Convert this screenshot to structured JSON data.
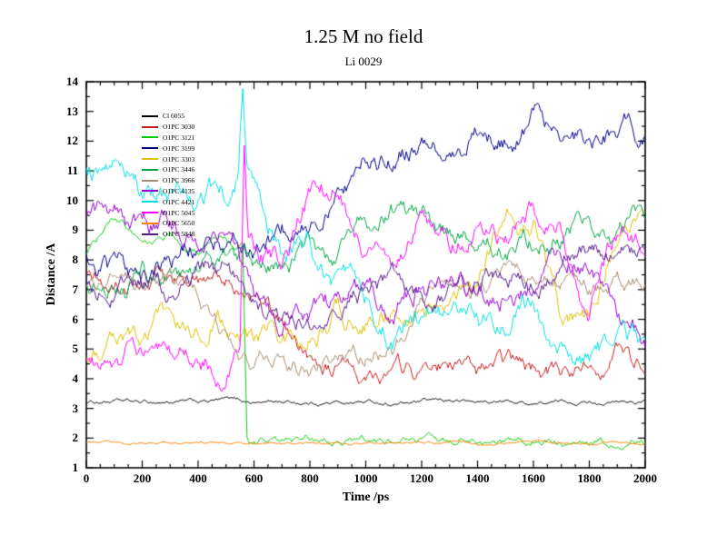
{
  "page": {
    "background": "#ffffff",
    "frame_color": "#000000"
  },
  "chart_data": {
    "type": "line",
    "title": "1.25 M no field",
    "subtitle": "Li 0029",
    "xlabel": "Time /ps",
    "ylabel": "Distance /A",
    "xlim": [
      0,
      2000
    ],
    "ylim": [
      1,
      14
    ],
    "xticks": [
      0,
      200,
      400,
      600,
      800,
      1000,
      1200,
      1400,
      1600,
      1800,
      2000
    ],
    "yticks": [
      1,
      2,
      3,
      4,
      5,
      6,
      7,
      8,
      9,
      10,
      11,
      12,
      13,
      14
    ],
    "x_minor_step": 50,
    "y_minor_step": 0.5,
    "grid": false,
    "legend_position": "upper-left-inside",
    "frame_color": "#000000",
    "series": [
      {
        "name": "Cl 6055",
        "color": "#000000",
        "noise": 0.05,
        "x": [
          0,
          100,
          200,
          300,
          400,
          500,
          600,
          700,
          800,
          900,
          1000,
          1100,
          1200,
          1300,
          1400,
          1500,
          1600,
          1700,
          1800,
          1900,
          2000
        ],
        "y": [
          3.2,
          3.25,
          3.18,
          3.22,
          3.2,
          3.28,
          3.2,
          3.24,
          3.18,
          3.2,
          3.22,
          3.16,
          3.2,
          3.26,
          3.2,
          3.22,
          3.18,
          3.2,
          3.24,
          3.2,
          3.22
        ]
      },
      {
        "name": "O1PC 3030",
        "color": "#c22020",
        "noise": 0.22,
        "x": [
          0,
          100,
          200,
          300,
          400,
          500,
          600,
          700,
          800,
          900,
          1000,
          1100,
          1200,
          1300,
          1400,
          1500,
          1600,
          1700,
          1800,
          1900,
          2000
        ],
        "y": [
          7.3,
          7.0,
          7.2,
          7.5,
          7.1,
          7.3,
          6.6,
          5.9,
          4.8,
          4.3,
          4.2,
          4.4,
          4.2,
          4.5,
          4.0,
          4.3,
          4.2,
          4.0,
          4.5,
          5.0,
          4.4
        ]
      },
      {
        "name": "O1PC 3121",
        "color": "#00cd00",
        "noise": 0.1,
        "x": [
          0,
          100,
          200,
          300,
          400,
          500,
          560,
          575,
          585,
          600,
          800,
          1000,
          1200,
          1400,
          1600,
          1800,
          2000
        ],
        "y": [
          8.2,
          9.3,
          8.6,
          8.9,
          8.3,
          8.6,
          8.5,
          2.0,
          1.92,
          1.9,
          1.9,
          1.92,
          1.9,
          1.9,
          1.92,
          1.9,
          1.9
        ]
      },
      {
        "name": "O1PC 3199",
        "color": "#00008b",
        "noise": 0.28,
        "x": [
          0,
          100,
          200,
          300,
          400,
          500,
          600,
          700,
          800,
          900,
          1000,
          1100,
          1200,
          1300,
          1400,
          1500,
          1600,
          1700,
          1800,
          1900,
          2000
        ],
        "y": [
          8.4,
          7.6,
          7.2,
          7.9,
          8.6,
          8.8,
          8.1,
          8.9,
          9.3,
          9.8,
          11.2,
          11.5,
          12.1,
          11.4,
          12.4,
          12.1,
          12.6,
          12.3,
          11.9,
          12.6,
          12.3
        ]
      },
      {
        "name": "O1PC 3303",
        "color": "#ddc000",
        "noise": 0.28,
        "x": [
          0,
          100,
          200,
          300,
          400,
          500,
          600,
          700,
          800,
          900,
          1000,
          1100,
          1200,
          1300,
          1400,
          1500,
          1600,
          1700,
          1800,
          1900,
          2000
        ],
        "y": [
          4.9,
          5.9,
          5.6,
          6.1,
          5.7,
          6.0,
          5.6,
          5.2,
          5.4,
          6.3,
          6.1,
          6.4,
          6.2,
          7.2,
          7.0,
          9.9,
          9.6,
          5.9,
          6.2,
          9.0,
          9.4
        ]
      },
      {
        "name": "O1PC 3446",
        "color": "#00a544",
        "noise": 0.26,
        "x": [
          0,
          100,
          200,
          300,
          400,
          500,
          600,
          700,
          800,
          900,
          1000,
          1100,
          1200,
          1300,
          1400,
          1500,
          1600,
          1700,
          1800,
          1900,
          2000
        ],
        "y": [
          7.4,
          7.1,
          7.6,
          7.3,
          7.8,
          8.0,
          7.7,
          7.9,
          8.2,
          8.0,
          9.0,
          9.6,
          9.3,
          8.7,
          8.9,
          8.6,
          8.5,
          8.8,
          9.3,
          8.5,
          9.6
        ]
      },
      {
        "name": "O1PC 3966",
        "color": "#a78b71",
        "noise": 0.22,
        "x": [
          0,
          100,
          200,
          300,
          400,
          500,
          600,
          700,
          800,
          900,
          1000,
          1100,
          1200,
          1300,
          1400,
          1500,
          1600,
          1700,
          1800,
          1900,
          2000
        ],
        "y": [
          7.1,
          7.3,
          6.9,
          7.2,
          6.8,
          5.2,
          4.6,
          4.9,
          4.4,
          4.6,
          4.8,
          5.0,
          7.0,
          7.4,
          7.2,
          7.6,
          7.3,
          7.5,
          7.2,
          7.4,
          7.3
        ]
      },
      {
        "name": "O1PC 4135",
        "color": "#9400d3",
        "noise": 0.28,
        "x": [
          0,
          100,
          200,
          300,
          400,
          500,
          600,
          700,
          800,
          900,
          1000,
          1100,
          1200,
          1300,
          1400,
          1500,
          1600,
          1700,
          1800,
          1900,
          2000
        ],
        "y": [
          9.6,
          9.4,
          9.0,
          9.2,
          8.8,
          9.0,
          6.4,
          6.0,
          6.3,
          6.6,
          7.0,
          6.6,
          7.4,
          7.0,
          6.7,
          7.2,
          7.0,
          7.6,
          7.9,
          6.0,
          5.4
        ]
      },
      {
        "name": "O1PC 4421",
        "color": "#00e0e0",
        "noise": 0.3,
        "x": [
          0,
          100,
          200,
          300,
          400,
          500,
          545,
          560,
          575,
          600,
          700,
          800,
          900,
          1000,
          1100,
          1200,
          1300,
          1400,
          1500,
          1600,
          1700,
          1800,
          1900,
          2000
        ],
        "y": [
          10.9,
          11.6,
          10.4,
          10.0,
          10.6,
          10.2,
          11.0,
          14.0,
          11.2,
          10.5,
          8.2,
          8.6,
          7.1,
          6.4,
          5.6,
          6.1,
          5.8,
          6.3,
          5.9,
          6.6,
          5.1,
          4.7,
          5.3,
          4.9
        ]
      },
      {
        "name": "O1PC 5045",
        "color": "#ff00ff",
        "noise": 0.28,
        "x": [
          0,
          100,
          200,
          300,
          400,
          500,
          550,
          565,
          580,
          600,
          700,
          800,
          900,
          1000,
          1100,
          1200,
          1300,
          1400,
          1500,
          1600,
          1700,
          1800,
          1900,
          2000
        ],
        "y": [
          4.7,
          4.5,
          4.8,
          4.4,
          4.6,
          4.5,
          4.8,
          11.7,
          8.5,
          8.3,
          8.0,
          10.4,
          10.6,
          8.2,
          7.8,
          9.6,
          8.8,
          9.3,
          8.6,
          9.8,
          9.0,
          6.1,
          8.8,
          8.4
        ]
      },
      {
        "name": "O1PC 5650",
        "color": "#ff8000",
        "noise": 0.03,
        "x": [
          0,
          100,
          200,
          300,
          400,
          500,
          600,
          700,
          800,
          900,
          1000,
          1100,
          1200,
          1300,
          1400,
          1500,
          1600,
          1700,
          1800,
          1900,
          2000
        ],
        "y": [
          1.83,
          1.83,
          1.83,
          1.83,
          1.83,
          1.83,
          1.83,
          1.83,
          1.83,
          1.83,
          1.83,
          1.83,
          1.83,
          1.83,
          1.83,
          1.83,
          1.83,
          1.83,
          1.83,
          1.83,
          1.83
        ]
      },
      {
        "name": "O1PC 5848",
        "color": "#551a8b",
        "noise": 0.25,
        "x": [
          0,
          100,
          200,
          300,
          400,
          500,
          600,
          700,
          800,
          900,
          1000,
          1100,
          1200,
          1300,
          1400,
          1500,
          1600,
          1700,
          1800,
          1900,
          2000
        ],
        "y": [
          7.2,
          6.9,
          7.4,
          7.0,
          7.5,
          7.8,
          6.2,
          5.8,
          6.0,
          6.4,
          6.9,
          7.2,
          6.7,
          7.0,
          7.4,
          7.7,
          7.2,
          7.8,
          8.2,
          7.9,
          8.2
        ]
      }
    ]
  }
}
